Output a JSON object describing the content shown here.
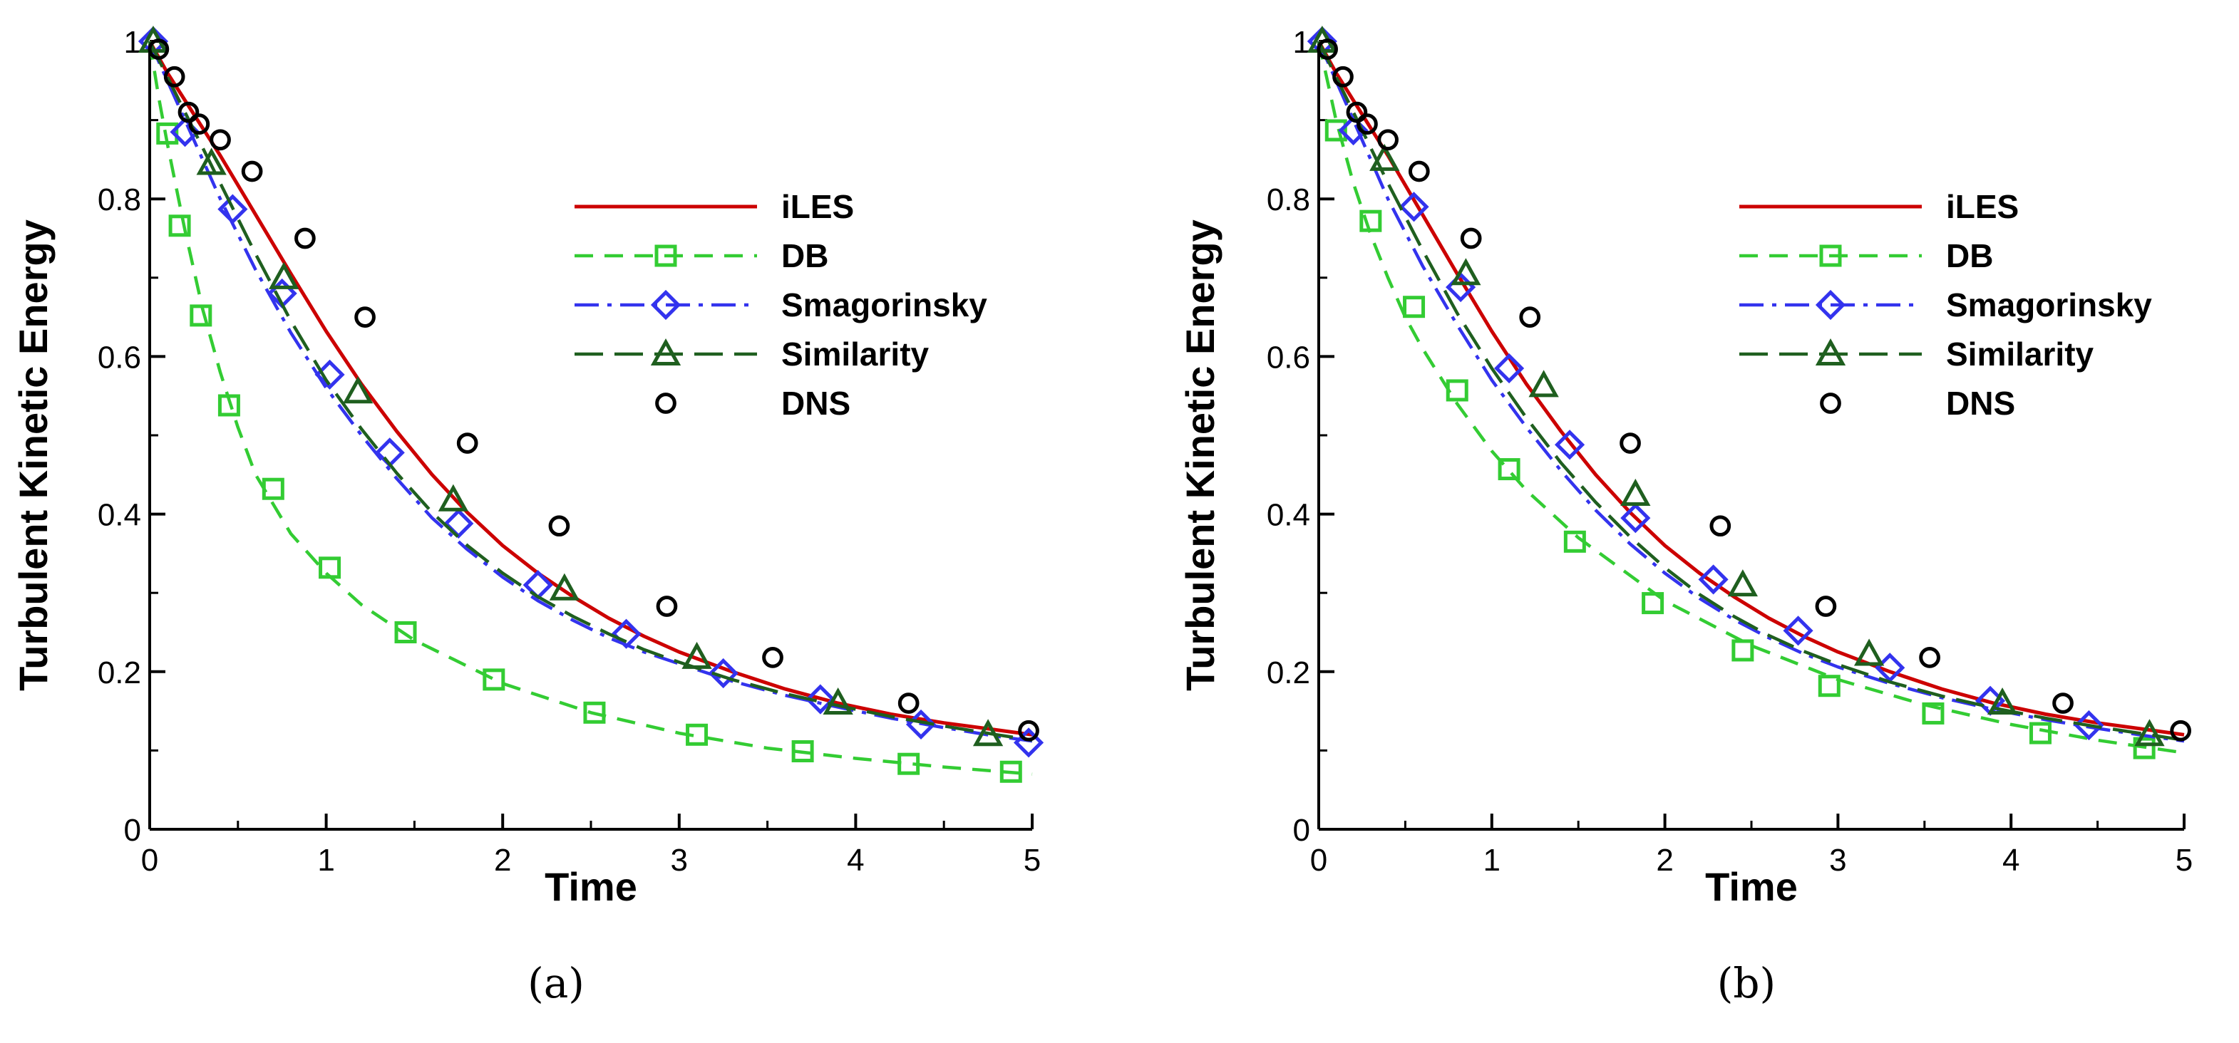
{
  "chart_data": [
    {
      "type": "line",
      "panel_label": "(a)",
      "xlabel": "Time",
      "ylabel": "Turbulent Kinetic Energy",
      "xlim": [
        0,
        5
      ],
      "ylim": [
        0,
        1
      ],
      "xticks": [
        0,
        1,
        2,
        3,
        4,
        5
      ],
      "yticks": [
        0,
        0.2,
        0.4,
        0.6,
        0.8,
        1
      ],
      "xtick_labels": [
        "0",
        "1",
        "2",
        "3",
        "4",
        "5"
      ],
      "ytick_labels": [
        "0",
        "0.2",
        "0.4",
        "0.6",
        "0.8",
        "1"
      ],
      "legend_position": "upper-right",
      "series": [
        {
          "name": "iLES",
          "color": "#cc0000",
          "dash": "solid",
          "marker": "none",
          "x": [
            0,
            0.1,
            0.2,
            0.4,
            0.6,
            0.8,
            1.0,
            1.2,
            1.4,
            1.6,
            1.8,
            2.0,
            2.2,
            2.4,
            2.6,
            2.8,
            3.0,
            3.3,
            3.6,
            3.9,
            4.2,
            4.5,
            4.8,
            5.0
          ],
          "y": [
            1.0,
            0.96,
            0.925,
            0.855,
            0.78,
            0.705,
            0.632,
            0.565,
            0.505,
            0.45,
            0.402,
            0.36,
            0.325,
            0.295,
            0.268,
            0.245,
            0.225,
            0.2,
            0.178,
            0.16,
            0.146,
            0.135,
            0.126,
            0.12
          ]
        },
        {
          "name": "DB",
          "color": "#33cc33",
          "dash": "dashed",
          "marker": "square",
          "x": [
            0,
            0.05,
            0.1,
            0.15,
            0.2,
            0.3,
            0.4,
            0.5,
            0.6,
            0.8,
            1.0,
            1.2,
            1.5,
            2.0,
            2.5,
            3.0,
            3.5,
            4.0,
            4.5,
            5.0
          ],
          "y": [
            1.0,
            0.93,
            0.87,
            0.815,
            0.76,
            0.66,
            0.58,
            0.51,
            0.45,
            0.375,
            0.325,
            0.285,
            0.24,
            0.185,
            0.148,
            0.122,
            0.103,
            0.09,
            0.079,
            0.07
          ],
          "marker_x": [
            0.1,
            0.17,
            0.29,
            0.45,
            0.7,
            1.02,
            1.45,
            1.95,
            2.52,
            3.1,
            3.7,
            4.3,
            4.88
          ],
          "marker_y": [
            0.883,
            0.766,
            0.652,
            0.538,
            0.432,
            0.332,
            0.25,
            0.19,
            0.148,
            0.12,
            0.099,
            0.083,
            0.073
          ]
        },
        {
          "name": "Smagorinsky",
          "color": "#3333ee",
          "dash": "dashdot",
          "marker": "diamond",
          "x": [
            0,
            0.2,
            0.4,
            0.6,
            0.8,
            1.0,
            1.2,
            1.4,
            1.6,
            1.8,
            2.0,
            2.2,
            2.4,
            2.6,
            2.8,
            3.0,
            3.3,
            3.6,
            3.9,
            4.2,
            4.5,
            4.8,
            5.0
          ],
          "y": [
            1.0,
            0.9,
            0.8,
            0.71,
            0.63,
            0.56,
            0.5,
            0.445,
            0.395,
            0.355,
            0.32,
            0.29,
            0.265,
            0.243,
            0.225,
            0.21,
            0.188,
            0.17,
            0.155,
            0.141,
            0.129,
            0.118,
            0.112
          ],
          "marker_x": [
            0.02,
            0.2,
            0.47,
            0.75,
            1.02,
            1.36,
            1.75,
            2.2,
            2.7,
            3.25,
            3.8,
            4.37,
            4.98
          ],
          "marker_y": [
            1.0,
            0.885,
            0.787,
            0.68,
            0.577,
            0.478,
            0.388,
            0.31,
            0.248,
            0.198,
            0.165,
            0.133,
            0.11
          ]
        },
        {
          "name": "Similarity",
          "color": "#1f5f1f",
          "dash": "longdash",
          "marker": "triangle",
          "x": [
            0,
            0.2,
            0.4,
            0.6,
            0.8,
            1.0,
            1.2,
            1.4,
            1.6,
            1.8,
            2.0,
            2.2,
            2.4,
            2.6,
            2.8,
            3.0,
            3.3,
            3.6,
            3.9,
            4.2,
            4.5,
            4.8,
            5.0
          ],
          "y": [
            1.0,
            0.91,
            0.82,
            0.73,
            0.645,
            0.57,
            0.508,
            0.452,
            0.402,
            0.36,
            0.325,
            0.295,
            0.27,
            0.248,
            0.228,
            0.212,
            0.19,
            0.172,
            0.157,
            0.143,
            0.131,
            0.12,
            0.113
          ],
          "marker_x": [
            0.02,
            0.35,
            0.76,
            1.18,
            1.72,
            2.35,
            3.1,
            3.9,
            4.75
          ],
          "marker_y": [
            1.0,
            0.845,
            0.7,
            0.555,
            0.418,
            0.305,
            0.218,
            0.16,
            0.12
          ]
        },
        {
          "name": "DNS",
          "color": "#000000",
          "dash": "none",
          "marker": "circle",
          "x": [
            0.05,
            0.14,
            0.22,
            0.28,
            0.4,
            0.58,
            0.88,
            1.22,
            1.8,
            2.32,
            2.93,
            3.53,
            4.3,
            4.98
          ],
          "y": [
            0.99,
            0.955,
            0.91,
            0.895,
            0.875,
            0.835,
            0.75,
            0.65,
            0.49,
            0.385,
            0.283,
            0.218,
            0.16,
            0.125
          ]
        }
      ]
    },
    {
      "type": "line",
      "panel_label": "(b)",
      "xlabel": "Time",
      "ylabel": "Turbulent Kinetic Energy",
      "xlim": [
        0,
        5
      ],
      "ylim": [
        0,
        1
      ],
      "xticks": [
        0,
        1,
        2,
        3,
        4,
        5
      ],
      "yticks": [
        0,
        0.2,
        0.4,
        0.6,
        0.8,
        1
      ],
      "xtick_labels": [
        "0",
        "1",
        "2",
        "3",
        "4",
        "5"
      ],
      "ytick_labels": [
        "0",
        "0.2",
        "0.4",
        "0.6",
        "0.8",
        "1"
      ],
      "legend_position": "upper-right",
      "series": [
        {
          "name": "iLES",
          "color": "#cc0000",
          "dash": "solid",
          "marker": "none",
          "x": [
            0,
            0.1,
            0.2,
            0.4,
            0.6,
            0.8,
            1.0,
            1.2,
            1.4,
            1.6,
            1.8,
            2.0,
            2.2,
            2.4,
            2.6,
            2.8,
            3.0,
            3.3,
            3.6,
            3.9,
            4.2,
            4.5,
            4.8,
            5.0
          ],
          "y": [
            1.0,
            0.96,
            0.925,
            0.855,
            0.78,
            0.705,
            0.632,
            0.565,
            0.505,
            0.45,
            0.402,
            0.36,
            0.325,
            0.295,
            0.268,
            0.245,
            0.225,
            0.2,
            0.178,
            0.16,
            0.146,
            0.135,
            0.126,
            0.12
          ]
        },
        {
          "name": "DB",
          "color": "#33cc33",
          "dash": "dashed",
          "marker": "square",
          "x": [
            0,
            0.1,
            0.2,
            0.3,
            0.4,
            0.5,
            0.6,
            0.8,
            1.0,
            1.2,
            1.5,
            2.0,
            2.5,
            3.0,
            3.5,
            4.0,
            4.5,
            5.0
          ],
          "y": [
            1.0,
            0.9,
            0.82,
            0.755,
            0.7,
            0.65,
            0.61,
            0.54,
            0.48,
            0.43,
            0.37,
            0.29,
            0.233,
            0.19,
            0.158,
            0.133,
            0.113,
            0.097
          ],
          "marker_x": [
            0.1,
            0.3,
            0.55,
            0.8,
            1.1,
            1.48,
            1.93,
            2.45,
            2.95,
            3.55,
            4.17,
            4.77
          ],
          "marker_y": [
            0.887,
            0.772,
            0.663,
            0.557,
            0.457,
            0.365,
            0.287,
            0.227,
            0.182,
            0.147,
            0.122,
            0.103
          ]
        },
        {
          "name": "Smagorinsky",
          "color": "#3333ee",
          "dash": "dashdot",
          "marker": "diamond",
          "x": [
            0,
            0.2,
            0.4,
            0.6,
            0.8,
            1.0,
            1.2,
            1.4,
            1.6,
            1.8,
            2.0,
            2.2,
            2.4,
            2.6,
            2.8,
            3.0,
            3.3,
            3.6,
            3.9,
            4.2,
            4.5,
            4.8,
            5.0
          ],
          "y": [
            1.0,
            0.9,
            0.8,
            0.715,
            0.64,
            0.57,
            0.51,
            0.455,
            0.405,
            0.362,
            0.325,
            0.293,
            0.266,
            0.243,
            0.223,
            0.206,
            0.185,
            0.167,
            0.152,
            0.139,
            0.128,
            0.118,
            0.112
          ],
          "marker_x": [
            0.02,
            0.2,
            0.55,
            0.82,
            1.1,
            1.45,
            1.83,
            2.28,
            2.77,
            3.3,
            3.88,
            4.45
          ],
          "marker_y": [
            1.0,
            0.887,
            0.79,
            0.688,
            0.585,
            0.488,
            0.395,
            0.317,
            0.252,
            0.205,
            0.163,
            0.132
          ]
        },
        {
          "name": "Similarity",
          "color": "#1f5f1f",
          "dash": "longdash",
          "marker": "triangle",
          "x": [
            0,
            0.2,
            0.4,
            0.6,
            0.8,
            1.0,
            1.2,
            1.4,
            1.6,
            1.8,
            2.0,
            2.2,
            2.4,
            2.6,
            2.8,
            3.0,
            3.3,
            3.6,
            3.9,
            4.2,
            4.5,
            4.8,
            5.0
          ],
          "y": [
            1.0,
            0.91,
            0.82,
            0.735,
            0.655,
            0.585,
            0.522,
            0.465,
            0.415,
            0.371,
            0.332,
            0.298,
            0.27,
            0.246,
            0.226,
            0.209,
            0.187,
            0.169,
            0.154,
            0.141,
            0.13,
            0.12,
            0.113
          ],
          "marker_x": [
            0.02,
            0.38,
            0.85,
            1.3,
            1.83,
            2.45,
            3.18,
            3.95,
            4.8
          ],
          "marker_y": [
            1.0,
            0.85,
            0.705,
            0.563,
            0.425,
            0.31,
            0.222,
            0.16,
            0.12
          ]
        },
        {
          "name": "DNS",
          "color": "#000000",
          "dash": "none",
          "marker": "circle",
          "x": [
            0.05,
            0.14,
            0.22,
            0.28,
            0.4,
            0.58,
            0.88,
            1.22,
            1.8,
            2.32,
            2.93,
            3.53,
            4.3,
            4.98
          ],
          "y": [
            0.99,
            0.955,
            0.91,
            0.895,
            0.875,
            0.835,
            0.75,
            0.65,
            0.49,
            0.385,
            0.283,
            0.218,
            0.16,
            0.125
          ]
        }
      ]
    }
  ]
}
